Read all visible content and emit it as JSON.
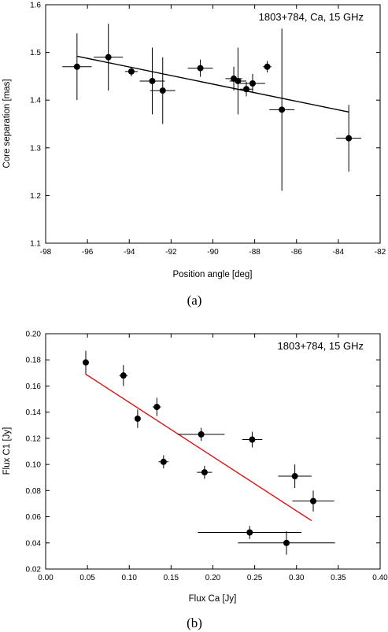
{
  "chart_data": [
    {
      "type": "scatter",
      "panel_label": "(a)",
      "annotation": "1803+784, Ca, 15 GHz",
      "xlabel": "Position angle [deg]",
      "ylabel": "Core separation [mas]",
      "xlim": [
        -98,
        -82
      ],
      "ylim": [
        1.1,
        1.6
      ],
      "xticks": [
        "-98",
        "-96",
        "-94",
        "-92",
        "-90",
        "-88",
        "-86",
        "-84",
        "-82"
      ],
      "yticks": [
        "1.1",
        "1.2",
        "1.3",
        "1.4",
        "1.5",
        "1.6"
      ],
      "grid": false,
      "points": [
        {
          "x": -96.5,
          "y": 1.47,
          "xerr": 0.7,
          "yerr": 0.07
        },
        {
          "x": -95.0,
          "y": 1.49,
          "xerr": 0.7,
          "yerr": 0.07
        },
        {
          "x": -93.9,
          "y": 1.46,
          "xerr": 0.3,
          "yerr": 0.01
        },
        {
          "x": -92.9,
          "y": 1.44,
          "xerr": 0.6,
          "yerr": 0.07
        },
        {
          "x": -92.4,
          "y": 1.42,
          "xerr": 0.6,
          "yerr": 0.07
        },
        {
          "x": -90.6,
          "y": 1.467,
          "xerr": 0.6,
          "yerr": 0.018
        },
        {
          "x": -89.0,
          "y": 1.445,
          "xerr": 0.4,
          "yerr": 0.025
        },
        {
          "x": -88.8,
          "y": 1.44,
          "xerr": 0.4,
          "yerr": 0.07
        },
        {
          "x": -88.4,
          "y": 1.423,
          "xerr": 0.3,
          "yerr": 0.015
        },
        {
          "x": -88.1,
          "y": 1.435,
          "xerr": 0.6,
          "yerr": 0.02
        },
        {
          "x": -87.4,
          "y": 1.47,
          "xerr": 0.2,
          "yerr": 0.012
        },
        {
          "x": -86.7,
          "y": 1.38,
          "xerr": 0.6,
          "yerr": 0.17
        },
        {
          "x": -83.5,
          "y": 1.32,
          "xerr": 0.6,
          "yerr": 0.07
        }
      ],
      "fit_line": {
        "x": [
          -96.5,
          -83.5
        ],
        "y": [
          1.492,
          1.375
        ],
        "color": "#000000"
      }
    },
    {
      "type": "scatter",
      "panel_label": "(b)",
      "annotation": "1803+784, 15 GHz",
      "xlabel": "Flux Ca [Jy]",
      "ylabel": "Flux C1 [Jy]",
      "xlim": [
        0.0,
        0.4
      ],
      "ylim": [
        0.02,
        0.2
      ],
      "xticks": [
        "0.00",
        "0.05",
        "0.10",
        "0.15",
        "0.20",
        "0.25",
        "0.30",
        "0.35",
        "0.40"
      ],
      "yticks": [
        "0.02",
        "0.04",
        "0.06",
        "0.08",
        "0.10",
        "0.12",
        "0.14",
        "0.16",
        "0.18",
        "0.20"
      ],
      "grid": false,
      "points": [
        {
          "x": 0.048,
          "y": 0.178,
          "xerr": 0.0,
          "yerr": 0.009
        },
        {
          "x": 0.093,
          "y": 0.168,
          "xerr": 0.005,
          "yerr": 0.008
        },
        {
          "x": 0.11,
          "y": 0.135,
          "xerr": 0.0,
          "yerr": 0.007
        },
        {
          "x": 0.133,
          "y": 0.144,
          "xerr": 0.005,
          "yerr": 0.007
        },
        {
          "x": 0.141,
          "y": 0.102,
          "xerr": 0.006,
          "yerr": 0.005
        },
        {
          "x": 0.186,
          "y": 0.123,
          "xerr": 0.028,
          "yerr": 0.005
        },
        {
          "x": 0.19,
          "y": 0.094,
          "xerr": 0.009,
          "yerr": 0.005
        },
        {
          "x": 0.247,
          "y": 0.119,
          "xerr": 0.012,
          "yerr": 0.006
        },
        {
          "x": 0.298,
          "y": 0.091,
          "xerr": 0.02,
          "yerr": 0.009
        },
        {
          "x": 0.32,
          "y": 0.072,
          "xerr": 0.025,
          "yerr": 0.008
        },
        {
          "x": 0.244,
          "y": 0.048,
          "xerr": 0.062,
          "yerr": 0.005
        },
        {
          "x": 0.288,
          "y": 0.04,
          "xerr": 0.058,
          "yerr": 0.009
        }
      ],
      "fit_line": {
        "x": [
          0.048,
          0.318
        ],
        "y": [
          0.169,
          0.057
        ],
        "color": "#e01010"
      }
    }
  ]
}
